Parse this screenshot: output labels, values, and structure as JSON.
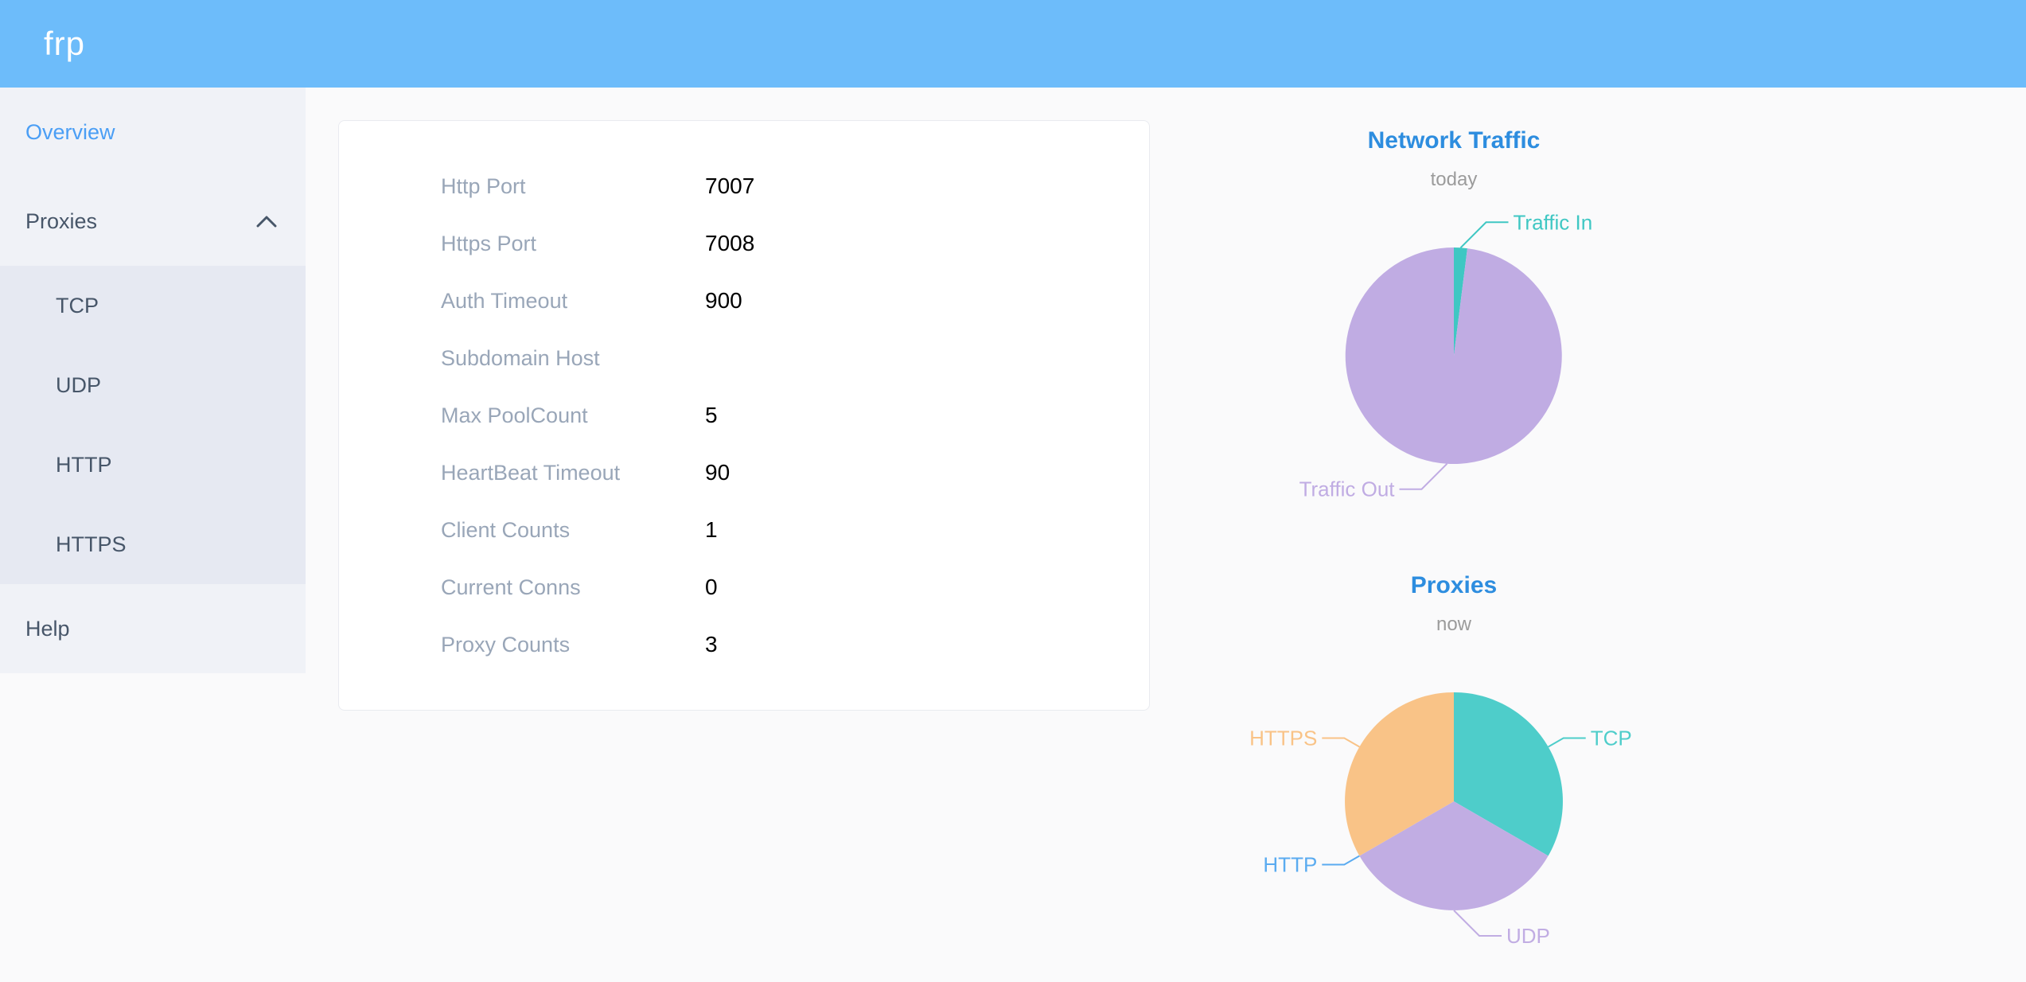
{
  "header": {
    "logo": "frp"
  },
  "sidebar": {
    "items": [
      {
        "id": "overview",
        "label": "Overview",
        "active": true
      },
      {
        "id": "proxies",
        "label": "Proxies",
        "expanded": true,
        "children": [
          {
            "id": "tcp",
            "label": "TCP"
          },
          {
            "id": "udp",
            "label": "UDP"
          },
          {
            "id": "http",
            "label": "HTTP"
          },
          {
            "id": "https",
            "label": "HTTPS"
          }
        ]
      },
      {
        "id": "help",
        "label": "Help"
      }
    ]
  },
  "overview_card": {
    "rows": [
      {
        "label": "Http Port",
        "value": "7007"
      },
      {
        "label": "Https Port",
        "value": "7008"
      },
      {
        "label": "Auth Timeout",
        "value": "900"
      },
      {
        "label": "Subdomain Host",
        "value": ""
      },
      {
        "label": "Max PoolCount",
        "value": "5"
      },
      {
        "label": "HeartBeat Timeout",
        "value": "90"
      },
      {
        "label": "Client Counts",
        "value": "1"
      },
      {
        "label": "Current Conns",
        "value": "0"
      },
      {
        "label": "Proxy Counts",
        "value": "3"
      }
    ]
  },
  "chart_data": [
    {
      "type": "pie",
      "title": "Network Traffic",
      "subtitle": "today",
      "legend_position": "outside-labels",
      "series": [
        {
          "name": "Traffic In",
          "value": 2,
          "color": "#3fc7c3"
        },
        {
          "name": "Traffic Out",
          "value": 98,
          "color": "#c0ace3"
        }
      ]
    },
    {
      "type": "pie",
      "title": "Proxies",
      "subtitle": "now",
      "legend_position": "outside-labels",
      "series": [
        {
          "name": "TCP",
          "value": 1,
          "color": "#4ecdca"
        },
        {
          "name": "UDP",
          "value": 1,
          "color": "#c1ade3"
        },
        {
          "name": "HTTP",
          "value": 0,
          "color": "#5aabf0"
        },
        {
          "name": "HTTPS",
          "value": 1,
          "color": "#f9c387"
        }
      ]
    }
  ],
  "colors": {
    "header_bg": "#6dbcfa",
    "sidebar_bg": "#f0f2f7",
    "submenu_bg": "#e6e9f2",
    "content_bg": "#fafafb",
    "card_border": "#e9ebf0",
    "card_label_gray": "#99a6b8",
    "chart_title_blue": "#2d8ddf",
    "chart_subtitle_gray": "#9b9b9b",
    "active_item_blue": "#4a9ef5",
    "sidebar_text": "#475669"
  }
}
